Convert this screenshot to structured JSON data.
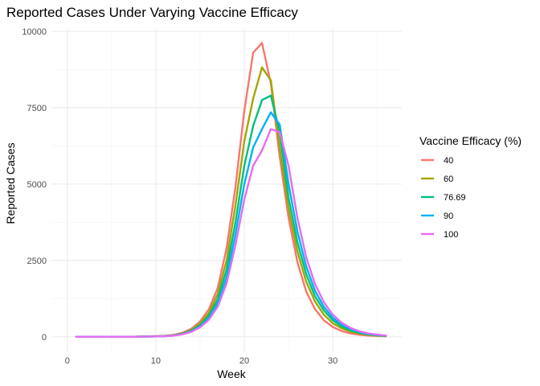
{
  "chart_data": {
    "type": "line",
    "title": "Reported Cases Under Varying Vaccine Efficacy",
    "xlabel": "Week",
    "ylabel": "Reported Cases",
    "xlim": [
      -1.8,
      37.8
    ],
    "ylim": [
      -480,
      10080
    ],
    "x_ticks": [
      0,
      10,
      20,
      30
    ],
    "y_ticks": [
      0,
      2500,
      5000,
      7500,
      10000
    ],
    "y_tick_labels": [
      "0",
      "2500",
      "5000",
      "7500",
      "10000"
    ],
    "grid": true,
    "legend": {
      "title": "Vaccine Efficacy (%)",
      "position": "right"
    },
    "x": [
      1,
      2,
      3,
      4,
      5,
      6,
      7,
      8,
      9,
      10,
      11,
      12,
      13,
      14,
      15,
      16,
      17,
      18,
      19,
      20,
      21,
      22,
      23,
      24,
      25,
      26,
      27,
      28,
      29,
      30,
      31,
      32,
      33,
      34,
      35,
      36
    ],
    "series": [
      {
        "name": "40",
        "color": "#F8766D",
        "values": [
          0,
          0,
          0,
          0,
          0,
          0,
          0,
          5,
          10,
          20,
          30,
          60,
          130,
          260,
          500,
          900,
          1600,
          2900,
          4900,
          7400,
          9300,
          9620,
          8300,
          5900,
          3900,
          2450,
          1480,
          900,
          540,
          320,
          190,
          110,
          65,
          40,
          25,
          15
        ]
      },
      {
        "name": "60",
        "color": "#A3A500",
        "values": [
          0,
          0,
          0,
          0,
          0,
          0,
          0,
          4,
          8,
          16,
          25,
          50,
          110,
          220,
          430,
          780,
          1400,
          2500,
          4300,
          6400,
          7800,
          8820,
          8400,
          6200,
          4200,
          2800,
          1800,
          1150,
          720,
          440,
          280,
          170,
          105,
          65,
          40,
          25
        ]
      },
      {
        "name": "76.69",
        "color": "#00BF7D",
        "values": [
          0,
          0,
          0,
          0,
          0,
          0,
          0,
          4,
          7,
          14,
          22,
          45,
          95,
          195,
          380,
          690,
          1230,
          2200,
          3750,
          5600,
          6900,
          7750,
          7900,
          6700,
          4550,
          3100,
          2050,
          1320,
          860,
          540,
          340,
          210,
          130,
          80,
          50,
          30
        ]
      },
      {
        "name": "90",
        "color": "#00B0F6",
        "values": [
          0,
          0,
          0,
          0,
          0,
          0,
          0,
          3,
          6,
          12,
          20,
          40,
          85,
          175,
          340,
          620,
          1100,
          1950,
          3350,
          5000,
          6200,
          6800,
          7350,
          6950,
          5000,
          3450,
          2300,
          1500,
          980,
          620,
          400,
          250,
          155,
          95,
          60,
          35
        ]
      },
      {
        "name": "100",
        "color": "#E76BF3",
        "values": [
          0,
          0,
          0,
          0,
          0,
          0,
          0,
          3,
          5,
          11,
          18,
          36,
          78,
          160,
          310,
          560,
          990,
          1750,
          3000,
          4500,
          5600,
          6100,
          6800,
          6700,
          5600,
          3900,
          2600,
          1720,
          1130,
          720,
          460,
          290,
          180,
          110,
          70,
          42
        ]
      }
    ]
  }
}
